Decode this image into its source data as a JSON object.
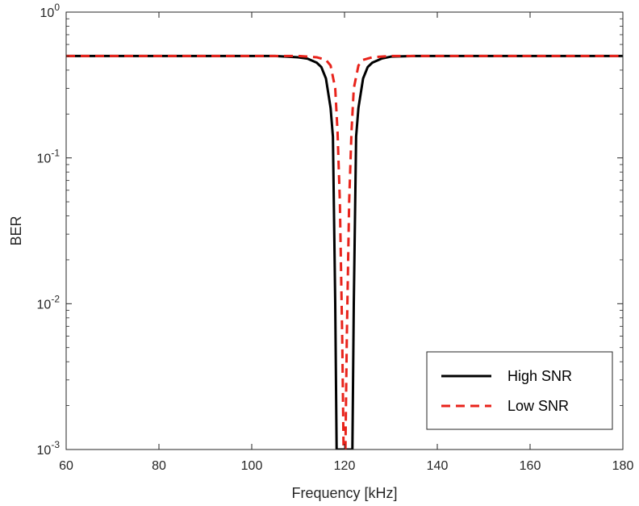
{
  "chart_data": {
    "type": "line",
    "xlabel": "Frequency [kHz]",
    "ylabel": "BER",
    "xlim": [
      60,
      180
    ],
    "ylim": [
      0.001,
      1
    ],
    "yscale": "log",
    "grid": false,
    "legend_placement": "bottom-right",
    "xticks": [
      60,
      80,
      100,
      120,
      140,
      160,
      180
    ],
    "xtick_labels": [
      "60",
      "80",
      "100",
      "120",
      "140",
      "160",
      "180"
    ],
    "yticks": [
      0.001,
      0.01,
      0.1,
      1
    ],
    "ytick_labels": [
      {
        "base": "10",
        "exp": "-3"
      },
      {
        "base": "10",
        "exp": "-2"
      },
      {
        "base": "10",
        "exp": "-1"
      },
      {
        "base": "10",
        "exp": "0"
      }
    ],
    "series": [
      {
        "name": "High SNR",
        "color": "#000000",
        "style": "solid",
        "x": [
          60,
          70,
          80,
          90,
          100,
          105,
          110,
          112,
          114,
          115,
          116,
          117,
          117.5,
          118,
          118.3,
          121.7,
          122,
          122.5,
          123,
          124,
          125,
          126,
          128,
          130,
          135,
          140,
          150,
          160,
          170,
          180
        ],
        "y": [
          0.5,
          0.5,
          0.5,
          0.5,
          0.5,
          0.5,
          0.49,
          0.48,
          0.45,
          0.42,
          0.35,
          0.22,
          0.14,
          0.01,
          0.001,
          0.001,
          0.01,
          0.14,
          0.22,
          0.35,
          0.42,
          0.45,
          0.48,
          0.495,
          0.5,
          0.5,
          0.5,
          0.5,
          0.5,
          0.5
        ]
      },
      {
        "name": "Low SNR",
        "color": "#e8231b",
        "style": "dashed",
        "x": [
          60,
          70,
          80,
          90,
          100,
          110,
          114,
          116,
          117,
          118,
          118.5,
          119,
          119.5,
          119.8,
          120.2,
          120.5,
          121,
          121.5,
          122,
          123,
          124,
          126,
          130,
          140,
          150,
          160,
          170,
          180
        ],
        "y": [
          0.5,
          0.5,
          0.5,
          0.5,
          0.5,
          0.5,
          0.49,
          0.47,
          0.43,
          0.3,
          0.15,
          0.05,
          0.006,
          0.001,
          0.001,
          0.006,
          0.05,
          0.15,
          0.3,
          0.43,
          0.47,
          0.49,
          0.5,
          0.5,
          0.5,
          0.5,
          0.5,
          0.5
        ]
      }
    ]
  }
}
